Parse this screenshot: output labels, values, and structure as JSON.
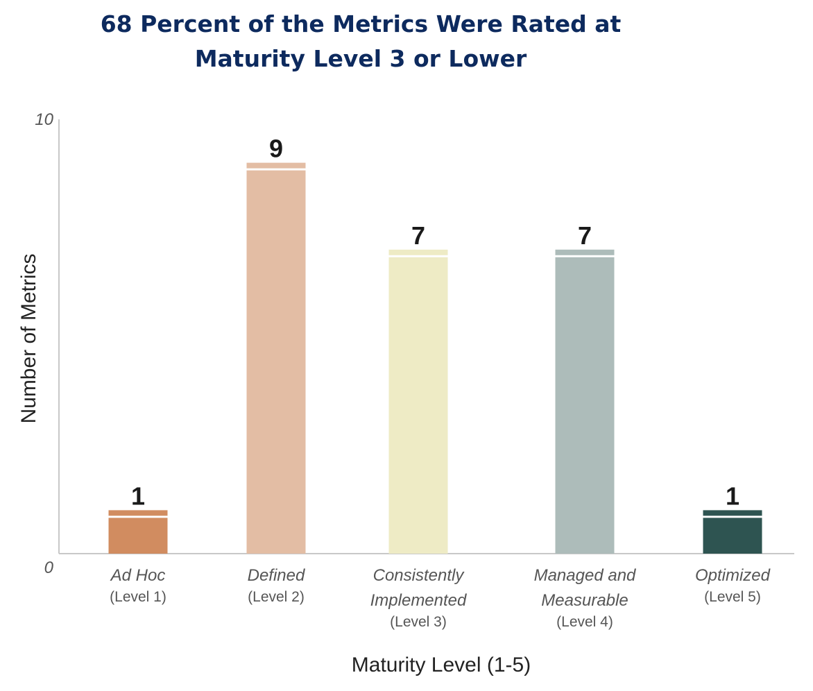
{
  "chart_data": {
    "type": "bar",
    "title": {
      "line1": "68 Percent of the Metrics Were Rated at",
      "line2": "Maturity Level 3 or Lower"
    },
    "xlabel": "Maturity Level (1-5)",
    "ylabel": "Number of Metrics",
    "ylim": [
      0,
      10
    ],
    "yticks": [
      {
        "value": 0,
        "label": "0"
      },
      {
        "value": 10,
        "label": "10"
      }
    ],
    "categories": [
      {
        "name_lines": [
          "Ad Hoc"
        ],
        "level": "(Level 1)",
        "value": 1,
        "label": "1",
        "color": "#d18c60"
      },
      {
        "name_lines": [
          "Defined"
        ],
        "level": "(Level 2)",
        "value": 9,
        "label": "9",
        "color": "#e3bda4"
      },
      {
        "name_lines": [
          "Consistently",
          "Implemented"
        ],
        "level": "(Level 3)",
        "value": 7,
        "label": "7",
        "color": "#eeebc5"
      },
      {
        "name_lines": [
          "Managed and",
          "Measurable"
        ],
        "level": "(Level 4)",
        "value": 7,
        "label": "7",
        "color": "#adbcba"
      },
      {
        "name_lines": [
          "Optimized"
        ],
        "level": "(Level 5)",
        "value": 1,
        "label": "1",
        "color": "#2e5451"
      }
    ]
  }
}
